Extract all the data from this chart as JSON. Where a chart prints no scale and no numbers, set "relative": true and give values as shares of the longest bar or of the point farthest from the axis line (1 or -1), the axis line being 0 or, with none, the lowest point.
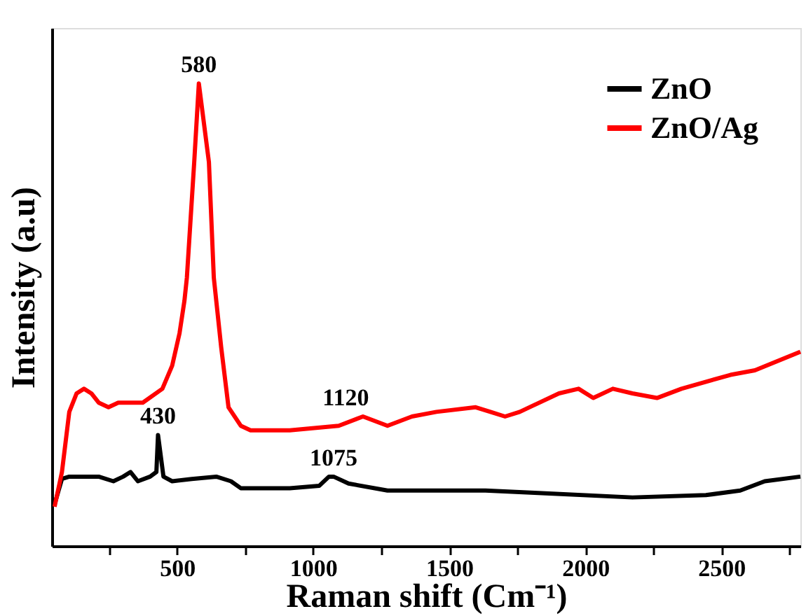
{
  "chart_data": {
    "type": "line",
    "xlabel": "Raman shift (Cm⁻¹)",
    "ylabel": "Intensity (a.u)",
    "relative": true,
    "xlim": [
      40,
      2790
    ],
    "xticks": [
      {
        "value": 250,
        "label": null
      },
      500,
      {
        "value": 750,
        "label": null
      },
      1000,
      {
        "value": 1250,
        "label": null
      },
      1500,
      {
        "value": 1750,
        "label": null
      },
      2000,
      {
        "value": 2250,
        "label": null
      },
      2500,
      {
        "value": 2750,
        "label": null
      }
    ],
    "legend": "top right",
    "grid": false,
    "line_style": "solid",
    "marker": "none",
    "series": [
      {
        "name": "ZnO",
        "color": "#000000",
        "x": [
          50,
          77,
          104,
          158,
          212,
          266,
          302,
          329,
          356,
          401,
          424,
          430,
          450,
          482,
          554,
          644,
          698,
          734,
          914,
          1022,
          1058,
          1075,
          1130,
          1273,
          1633,
          1813,
          2173,
          2443,
          2569,
          2659,
          2790
        ],
        "values": [
          0.09,
          0.145,
          0.15,
          0.15,
          0.15,
          0.14,
          0.15,
          0.16,
          0.14,
          0.15,
          0.16,
          0.24,
          0.15,
          0.14,
          0.145,
          0.15,
          0.14,
          0.125,
          0.125,
          0.13,
          0.15,
          0.15,
          0.135,
          0.12,
          0.12,
          0.115,
          0.105,
          0.11,
          0.12,
          0.14,
          0.15
        ]
      },
      {
        "name": "ZnO/Ag",
        "color": "#ff0000",
        "x": [
          50,
          77,
          104,
          131,
          158,
          185,
          212,
          248,
          284,
          374,
          446,
          482,
          509,
          527,
          536,
          563,
          580,
          617,
          635,
          662,
          689,
          734,
          770,
          914,
          1094,
          1183,
          1273,
          1363,
          1453,
          1597,
          1651,
          1705,
          1759,
          1903,
          1975,
          2029,
          2101,
          2173,
          2263,
          2353,
          2533,
          2623,
          2790
        ],
        "values": [
          0.085,
          0.16,
          0.29,
          0.33,
          0.34,
          0.33,
          0.31,
          0.3,
          0.31,
          0.31,
          0.34,
          0.39,
          0.46,
          0.53,
          0.58,
          0.83,
          1.0,
          0.83,
          0.58,
          0.43,
          0.3,
          0.26,
          0.25,
          0.25,
          0.26,
          0.28,
          0.26,
          0.28,
          0.29,
          0.3,
          0.29,
          0.28,
          0.29,
          0.33,
          0.34,
          0.32,
          0.34,
          0.33,
          0.32,
          0.34,
          0.37,
          0.38,
          0.42
        ]
      }
    ],
    "annotations": [
      {
        "text": "580",
        "x": 580,
        "y": 1.0
      },
      {
        "text": "430",
        "x": 430,
        "y": 0.24
      },
      {
        "text": "1120",
        "x": 1120,
        "y": 0.28
      },
      {
        "text": "1075",
        "x": 1075,
        "y": 0.15
      }
    ]
  }
}
